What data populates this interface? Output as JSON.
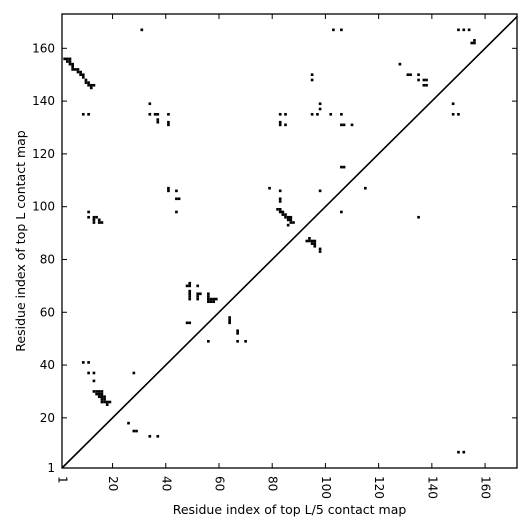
{
  "chart_data": {
    "type": "scatter",
    "xlabel": "Residue index of top L/5 contact map",
    "ylabel": "Residue index of top L contact map",
    "xlim": [
      1,
      172
    ],
    "ylim": [
      1,
      173
    ],
    "xticks": [
      1,
      20,
      40,
      60,
      80,
      100,
      120,
      140,
      160
    ],
    "yticks": [
      1,
      20,
      40,
      60,
      80,
      100,
      120,
      140,
      160
    ],
    "grid": false,
    "marker": "filled-square",
    "marker_color": "#000000",
    "diagonal": {
      "from": [
        1,
        1
      ],
      "to": [
        172,
        172
      ],
      "color": "#000000"
    },
    "points_upper": [
      [
        2,
        156
      ],
      [
        3,
        156
      ],
      [
        3,
        155
      ],
      [
        4,
        156
      ],
      [
        4,
        155
      ],
      [
        4,
        154
      ],
      [
        5,
        154
      ],
      [
        5,
        153
      ],
      [
        5,
        152
      ],
      [
        6,
        152
      ],
      [
        7,
        152
      ],
      [
        7,
        151
      ],
      [
        8,
        151
      ],
      [
        8,
        150
      ],
      [
        9,
        150
      ],
      [
        9,
        149
      ],
      [
        10,
        148
      ],
      [
        10,
        147
      ],
      [
        11,
        147
      ],
      [
        11,
        146
      ],
      [
        12,
        146
      ],
      [
        12,
        145
      ],
      [
        13,
        146
      ],
      [
        9,
        135
      ],
      [
        11,
        135
      ],
      [
        34,
        139
      ],
      [
        34,
        135
      ],
      [
        36,
        135
      ],
      [
        37,
        135
      ],
      [
        37,
        133
      ],
      [
        37,
        132
      ],
      [
        41,
        135
      ],
      [
        41,
        132
      ],
      [
        41,
        131
      ],
      [
        31,
        167
      ],
      [
        83,
        135
      ],
      [
        83,
        132
      ],
      [
        83,
        131
      ],
      [
        85,
        135
      ],
      [
        85,
        131
      ],
      [
        95,
        150
      ],
      [
        95,
        148
      ],
      [
        95,
        135
      ],
      [
        97,
        135
      ],
      [
        98,
        139
      ],
      [
        98,
        137
      ],
      [
        102,
        135
      ],
      [
        103,
        167
      ],
      [
        106,
        167
      ],
      [
        106,
        135
      ],
      [
        106,
        131
      ],
      [
        107,
        131
      ],
      [
        110,
        131
      ],
      [
        128,
        154
      ],
      [
        131,
        150
      ],
      [
        132,
        150
      ],
      [
        135,
        150
      ],
      [
        135,
        148
      ],
      [
        137,
        148
      ],
      [
        138,
        148
      ],
      [
        137,
        146
      ],
      [
        138,
        146
      ],
      [
        148,
        139
      ],
      [
        148,
        135
      ],
      [
        150,
        135
      ],
      [
        150,
        167
      ],
      [
        152,
        167
      ],
      [
        154,
        167
      ],
      [
        155,
        162
      ],
      [
        156,
        163
      ],
      [
        156,
        162
      ],
      [
        106,
        115
      ],
      [
        107,
        115
      ],
      [
        115,
        107
      ],
      [
        41,
        107
      ],
      [
        41,
        106
      ],
      [
        44,
        106
      ],
      [
        44,
        103
      ],
      [
        45,
        103
      ],
      [
        44,
        98
      ],
      [
        11,
        98
      ],
      [
        11,
        96
      ],
      [
        13,
        96
      ],
      [
        13,
        95
      ],
      [
        13,
        94
      ],
      [
        14,
        96
      ],
      [
        15,
        95
      ],
      [
        15,
        94
      ],
      [
        16,
        94
      ],
      [
        79,
        107
      ],
      [
        83,
        106
      ],
      [
        83,
        103
      ],
      [
        83,
        102
      ],
      [
        82,
        99
      ],
      [
        83,
        99
      ],
      [
        83,
        98
      ],
      [
        84,
        98
      ],
      [
        84,
        97
      ],
      [
        85,
        97
      ],
      [
        85,
        96
      ],
      [
        86,
        96
      ],
      [
        86,
        95
      ],
      [
        87,
        96
      ],
      [
        87,
        95
      ],
      [
        87,
        94
      ],
      [
        88,
        94
      ],
      [
        86,
        93
      ],
      [
        106,
        98
      ],
      [
        98,
        106
      ],
      [
        93,
        87
      ],
      [
        94,
        88
      ],
      [
        94,
        87
      ],
      [
        95,
        87
      ],
      [
        95,
        86
      ],
      [
        96,
        87
      ],
      [
        96,
        86
      ],
      [
        96,
        85
      ],
      [
        98,
        84
      ],
      [
        98,
        83
      ],
      [
        135,
        96
      ],
      [
        48,
        70
      ],
      [
        49,
        71
      ],
      [
        49,
        70
      ],
      [
        52,
        70
      ],
      [
        49,
        68
      ],
      [
        49,
        67
      ],
      [
        52,
        67
      ],
      [
        52,
        66
      ],
      [
        53,
        67
      ],
      [
        49,
        66
      ],
      [
        49,
        65
      ],
      [
        52,
        65
      ],
      [
        56,
        67
      ],
      [
        56,
        66
      ],
      [
        56,
        65
      ],
      [
        57,
        65
      ],
      [
        58,
        65
      ],
      [
        59,
        65
      ],
      [
        56,
        64
      ],
      [
        57,
        64
      ],
      [
        58,
        64
      ],
      [
        48,
        56
      ],
      [
        49,
        56
      ],
      [
        64,
        58
      ],
      [
        64,
        57
      ],
      [
        64,
        56
      ],
      [
        67,
        53
      ],
      [
        67,
        52
      ],
      [
        56,
        49
      ],
      [
        67,
        49
      ],
      [
        70,
        49
      ],
      [
        9,
        41
      ],
      [
        11,
        41
      ],
      [
        11,
        37
      ],
      [
        13,
        37
      ],
      [
        13,
        34
      ],
      [
        28,
        37
      ],
      [
        13,
        30
      ],
      [
        14,
        30
      ],
      [
        15,
        30
      ],
      [
        16,
        30
      ],
      [
        14,
        29
      ],
      [
        15,
        29
      ],
      [
        16,
        29
      ],
      [
        15,
        28
      ],
      [
        16,
        28
      ],
      [
        17,
        28
      ],
      [
        16,
        27
      ],
      [
        17,
        27
      ],
      [
        16,
        26
      ],
      [
        17,
        26
      ],
      [
        18,
        26
      ],
      [
        19,
        26
      ],
      [
        18,
        25
      ],
      [
        26,
        18
      ],
      [
        28,
        15
      ],
      [
        29,
        15
      ],
      [
        34,
        13
      ],
      [
        37,
        13
      ],
      [
        150,
        7
      ],
      [
        152,
        7
      ]
    ]
  }
}
